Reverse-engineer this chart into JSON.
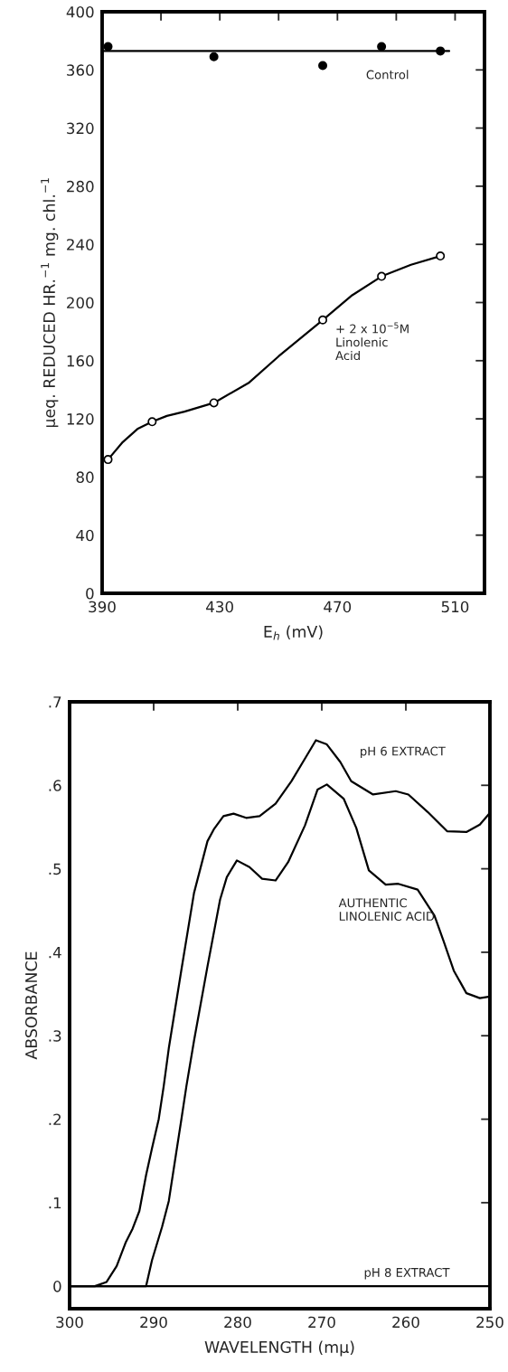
{
  "chart_data": [
    {
      "type": "line",
      "xlabel": "E$_{h}$ (mV)",
      "ylabel": "μeq. REDUCED HR.$^{−1}$ mg. chl.$^{−1}$",
      "xlim": [
        390,
        520
      ],
      "ylim": [
        0,
        400
      ],
      "xticks": [
        390,
        {
          "value": 410,
          "label": null
        },
        430,
        {
          "value": 450,
          "label": null
        },
        470,
        {
          "value": 490,
          "label": null
        },
        510
      ],
      "yticks": [
        0,
        40,
        80,
        120,
        160,
        200,
        240,
        280,
        320,
        360,
        400
      ],
      "series": [
        {
          "color": "#000000",
          "x": [
            390,
            508
          ],
          "values": [
            373,
            373
          ]
        },
        {
          "type": "scatter",
          "color": "#000000",
          "marker": "circle",
          "x": [
            392,
            428,
            465,
            485,
            505
          ],
          "values": [
            376,
            369,
            363,
            376,
            373
          ]
        },
        {
          "color": "#000000",
          "x": [
            392,
            397,
            402,
            407,
            412,
            418,
            428,
            440,
            450,
            465,
            475,
            485,
            495,
            505
          ],
          "values": [
            92,
            104,
            113,
            118,
            122,
            125,
            131,
            145,
            163,
            188,
            205,
            218,
            226,
            232
          ]
        },
        {
          "type": "scatter",
          "color": "#ffffff",
          "marker": "circle",
          "x": [
            392,
            407,
            428,
            465,
            485,
            505
          ],
          "values": [
            92,
            118,
            131,
            188,
            218,
            232
          ]
        }
      ],
      "annotations": [
        "Control",
        "+ 2 x 10$^{−5}$M\nLinolenic\nAcid"
      ],
      "grid": false
    },
    {
      "type": "line",
      "xlabel": "WAVELENGTH (mμ)",
      "ylabel": "ABSORBANCE",
      "xlim": [
        300,
        250
      ],
      "ylim": [
        -0.027,
        0.7
      ],
      "xticks": [
        300,
        290,
        280,
        270,
        260,
        250
      ],
      "yticks": [
        0,
        {
          "value": 0.1,
          "label": ".1"
        },
        {
          "value": 0.2,
          "label": ".2"
        },
        {
          "value": 0.3,
          "label": ".3"
        },
        {
          "value": 0.4,
          "label": ".4"
        },
        {
          "value": 0.5,
          "label": ".5"
        },
        {
          "value": 0.6,
          "label": ".6"
        },
        {
          "value": 0.7,
          "label": ".7"
        }
      ],
      "series": [
        {
          "color": "#000000",
          "x": [
            300,
            297,
            295.6,
            294.4,
            293.3,
            292.5,
            291.7,
            290.9,
            290.2,
            289.4,
            288.8,
            288.2,
            286.7,
            285.2,
            283.6,
            282.8,
            281.7,
            280.5,
            279.0,
            277.4,
            275.5,
            273.6,
            272.0,
            270.7,
            269.4,
            267.8,
            266.5,
            263.9,
            261.2,
            259.7,
            257.4,
            255.1,
            252.8,
            251.2,
            250.0
          ],
          "values": [
            0,
            0,
            0.005,
            0.024,
            0.053,
            0.069,
            0.09,
            0.133,
            0.165,
            0.2,
            0.24,
            0.285,
            0.379,
            0.471,
            0.533,
            0.548,
            0.563,
            0.566,
            0.561,
            0.563,
            0.578,
            0.605,
            0.632,
            0.654,
            0.649,
            0.628,
            0.605,
            0.589,
            0.593,
            0.589,
            0.568,
            0.545,
            0.544,
            0.553,
            0.567
          ]
        },
        {
          "color": "#000000",
          "x": [
            300,
            290.9,
            290.2,
            289.0,
            288.2,
            287.3,
            286.7,
            286.1,
            285.2,
            283.6,
            282.1,
            281.3,
            280.1,
            278.6,
            277.1,
            275.5,
            274.0,
            272.0,
            270.5,
            269.4,
            267.4,
            265.9,
            264.4,
            262.4,
            260.9,
            258.6,
            256.6,
            255.5,
            254.3,
            252.8,
            251.2,
            250.0
          ],
          "values": [
            0,
            0,
            0.031,
            0.071,
            0.102,
            0.161,
            0.2,
            0.24,
            0.294,
            0.383,
            0.463,
            0.49,
            0.51,
            0.502,
            0.488,
            0.486,
            0.508,
            0.552,
            0.595,
            0.601,
            0.584,
            0.549,
            0.498,
            0.481,
            0.482,
            0.475,
            0.444,
            0.413,
            0.378,
            0.351,
            0.345,
            0.347
          ]
        },
        {
          "color": "#000000",
          "x": [
            300,
            250
          ],
          "values": [
            0,
            0
          ]
        }
      ],
      "annotations": [
        "pH 6 EXTRACT",
        "AUTHENTIC\nLINOLENIC ACID",
        "pH 8 EXTRACT"
      ],
      "grid": false
    }
  ]
}
